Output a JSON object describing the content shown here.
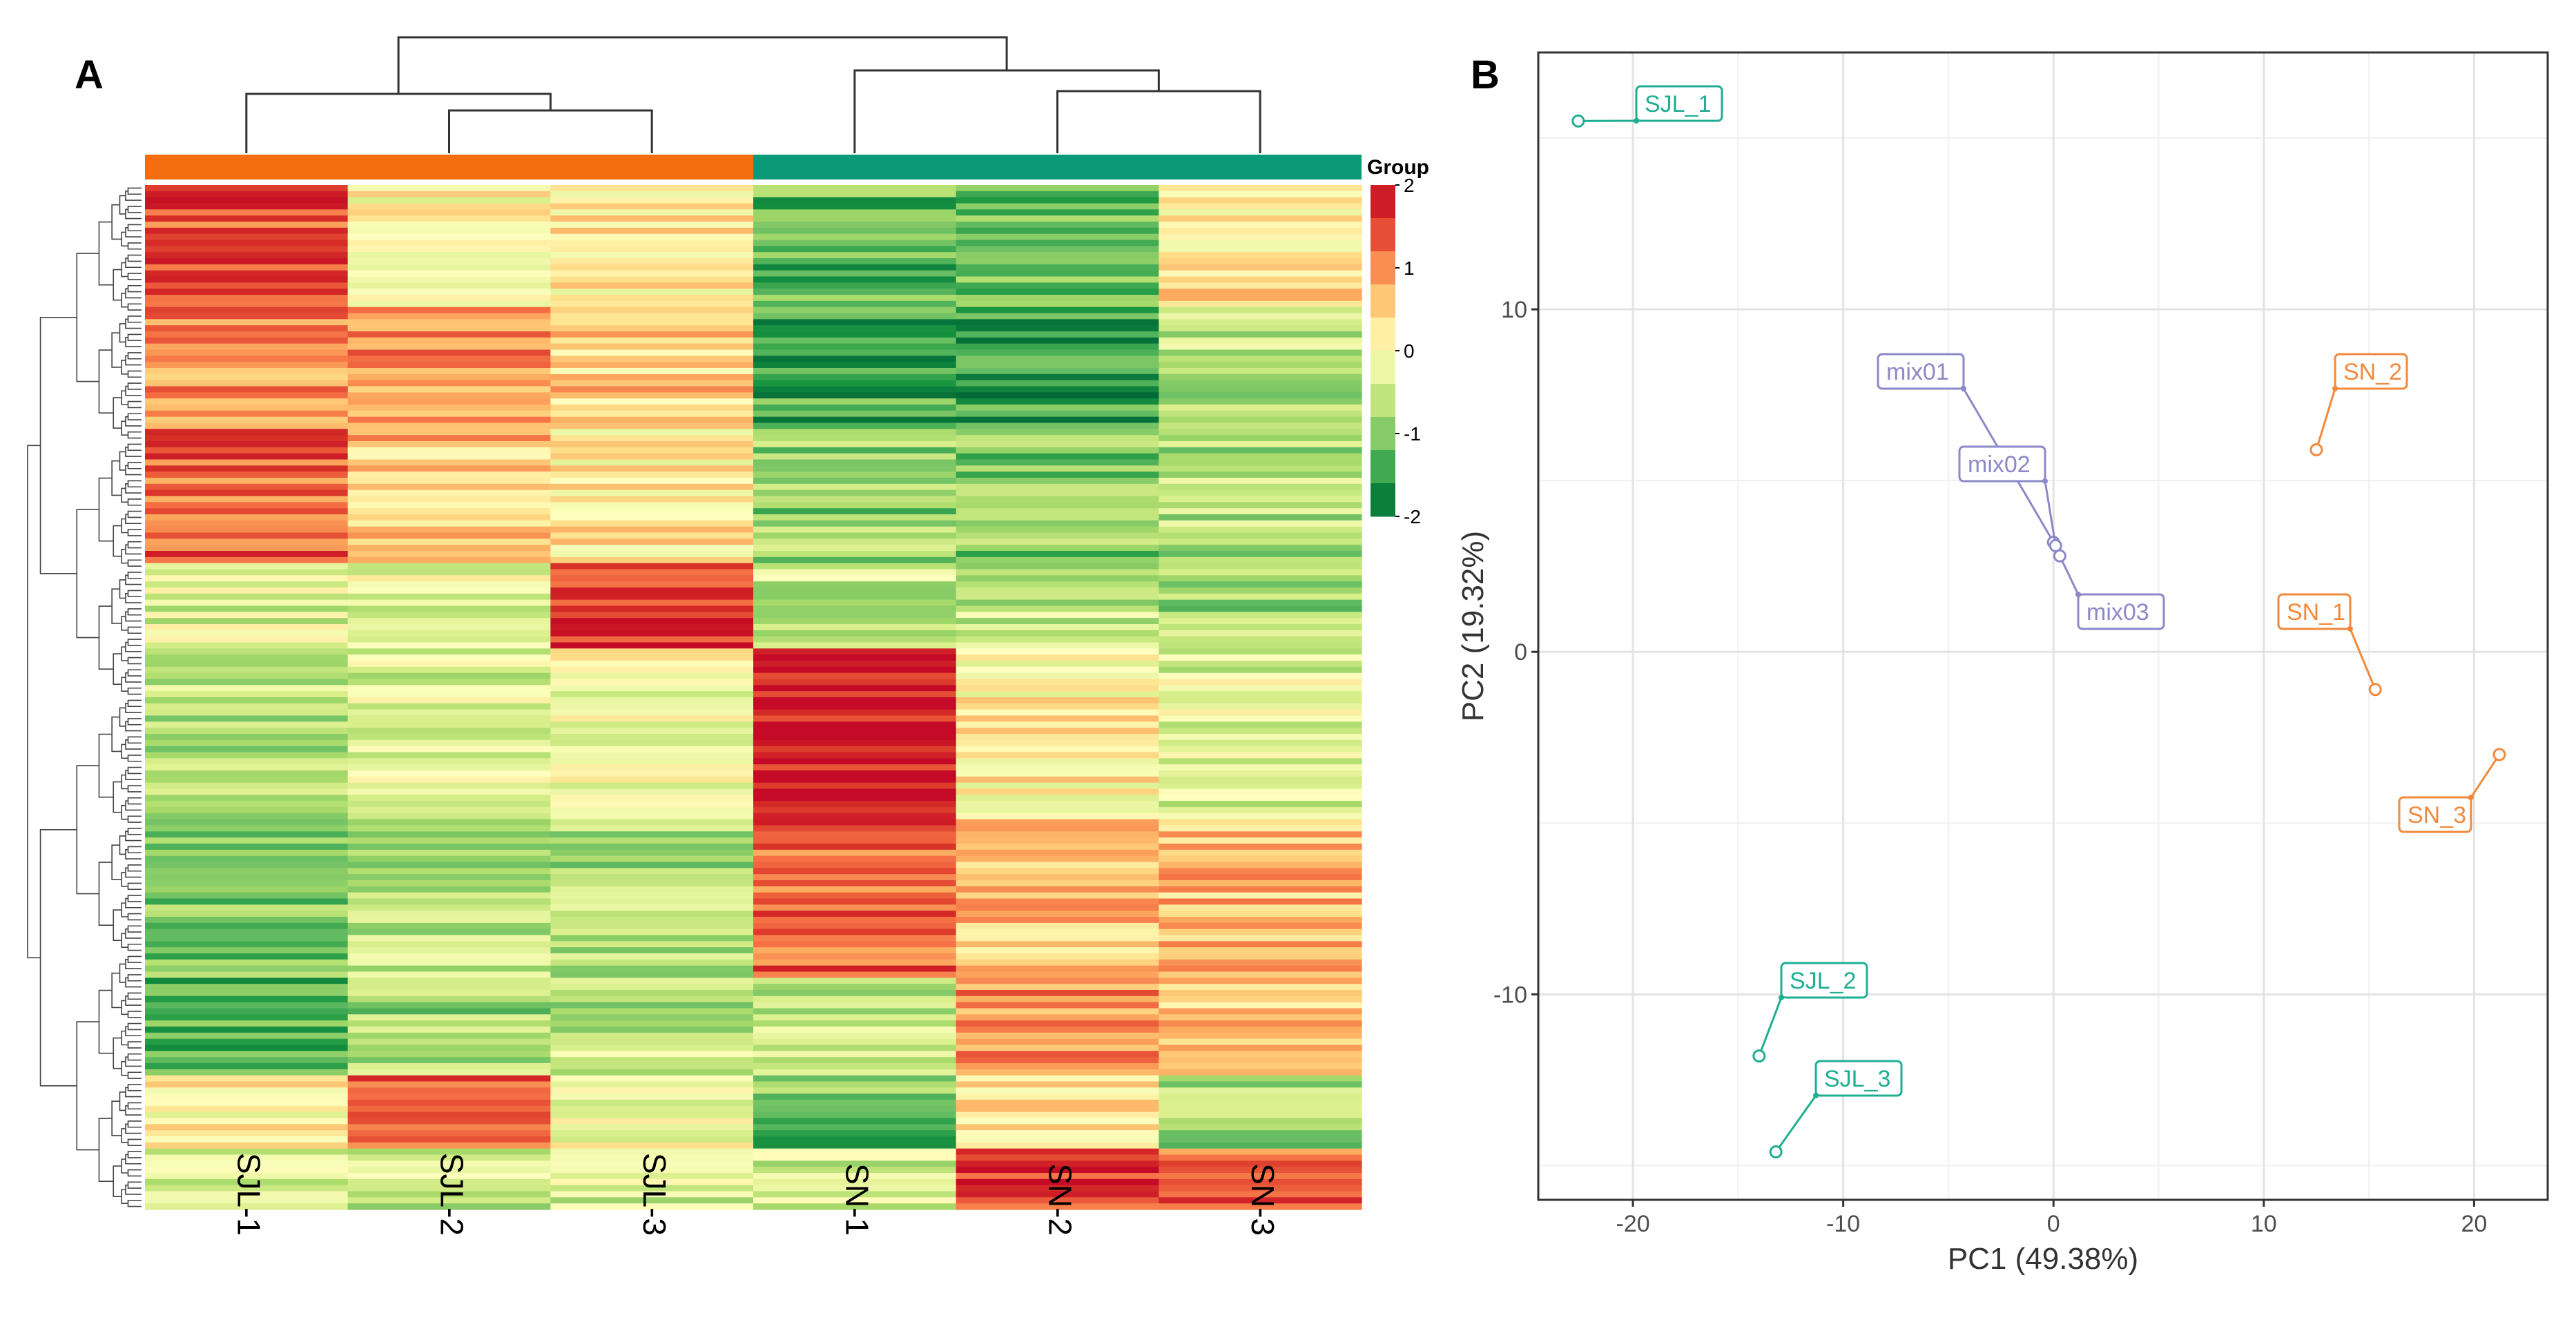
{
  "panel_a_letter": "A",
  "panel_b_letter": "B",
  "chart_data": [
    {
      "type": "heatmap",
      "title": "",
      "columns": [
        "SJL-1",
        "SJL-2",
        "SJL-3",
        "SN-1",
        "SN-2",
        "SN-3"
      ],
      "group_bar": [
        {
          "name": "SJL",
          "columns": [
            "SJL-1",
            "SJL-2",
            "SJL-3"
          ],
          "color": "#f46d0e"
        },
        {
          "name": "SN",
          "columns": [
            "SN-1",
            "SN-2",
            "SN-3"
          ],
          "color": "#0a9a77"
        }
      ],
      "legend": {
        "title": "Group",
        "ticks": [
          "2",
          "1",
          "0",
          "-1",
          "-2"
        ],
        "range": [
          -2,
          2
        ]
      },
      "colorscale": [
        "#006837",
        "#1a9641",
        "#66bd63",
        "#a6d96a",
        "#d9ef8b",
        "#ffffbf",
        "#fee08b",
        "#fdae61",
        "#f46d43",
        "#d73027",
        "#c40a26"
      ],
      "row_blocks": [
        {
          "rows": 20,
          "values": [
            1.4,
            0.1,
            0.3,
            -1.2,
            -1.1,
            0.3
          ]
        },
        {
          "rows": 20,
          "values": [
            1.0,
            0.9,
            0.5,
            -1.4,
            -1.5,
            -0.6
          ]
        },
        {
          "rows": 22,
          "values": [
            1.3,
            0.6,
            0.2,
            -0.9,
            -1.0,
            -0.7
          ]
        },
        {
          "rows": 14,
          "values": [
            -0.3,
            -0.2,
            1.6,
            -0.5,
            -0.6,
            -0.8
          ]
        },
        {
          "rows": 28,
          "values": [
            -0.6,
            -0.3,
            0.0,
            1.9,
            0.2,
            -0.3
          ]
        },
        {
          "rows": 26,
          "values": [
            -1.0,
            -0.6,
            -0.7,
            1.3,
            0.6,
            0.7
          ]
        },
        {
          "rows": 16,
          "values": [
            -1.2,
            -0.8,
            -0.6,
            -0.6,
            1.0,
            0.6
          ]
        },
        {
          "rows": 12,
          "values": [
            0.1,
            1.3,
            0.0,
            -1.1,
            0.4,
            -0.8
          ]
        },
        {
          "rows": 10,
          "values": [
            -0.3,
            -0.5,
            -0.4,
            -0.5,
            1.6,
            1.2
          ]
        }
      ]
    },
    {
      "type": "scatter",
      "title": "",
      "xlabel": "PC1 (49.38%)",
      "ylabel": "PC2 (19.32%)",
      "xlim": [
        -24.5,
        23.5
      ],
      "ylim": [
        -16,
        17.5
      ],
      "xticks": [
        -20,
        -10,
        0,
        10,
        20
      ],
      "yticks": [
        -10,
        0,
        10
      ],
      "grid": true,
      "series": [
        {
          "name": "SJL",
          "color": "#1fae92",
          "points": [
            {
              "label": "SJL_1",
              "x": -22.6,
              "y": 15.5
            },
            {
              "label": "SJL_2",
              "x": -14.0,
              "y": -11.8
            },
            {
              "label": "SJL_3",
              "x": -13.2,
              "y": -14.6
            }
          ]
        },
        {
          "name": "mix",
          "color": "#8d88c8",
          "points": [
            {
              "label": "mix01",
              "x": 0.0,
              "y": 3.2
            },
            {
              "label": "mix02",
              "x": 0.1,
              "y": 3.1
            },
            {
              "label": "mix03",
              "x": 0.3,
              "y": 2.8
            }
          ]
        },
        {
          "name": "SN",
          "color": "#f2893c",
          "points": [
            {
              "label": "SN_1",
              "x": 15.3,
              "y": -1.1
            },
            {
              "label": "SN_2",
              "x": 12.5,
              "y": 5.9
            },
            {
              "label": "SN_3",
              "x": 21.2,
              "y": -3.0
            }
          ]
        }
      ]
    }
  ]
}
